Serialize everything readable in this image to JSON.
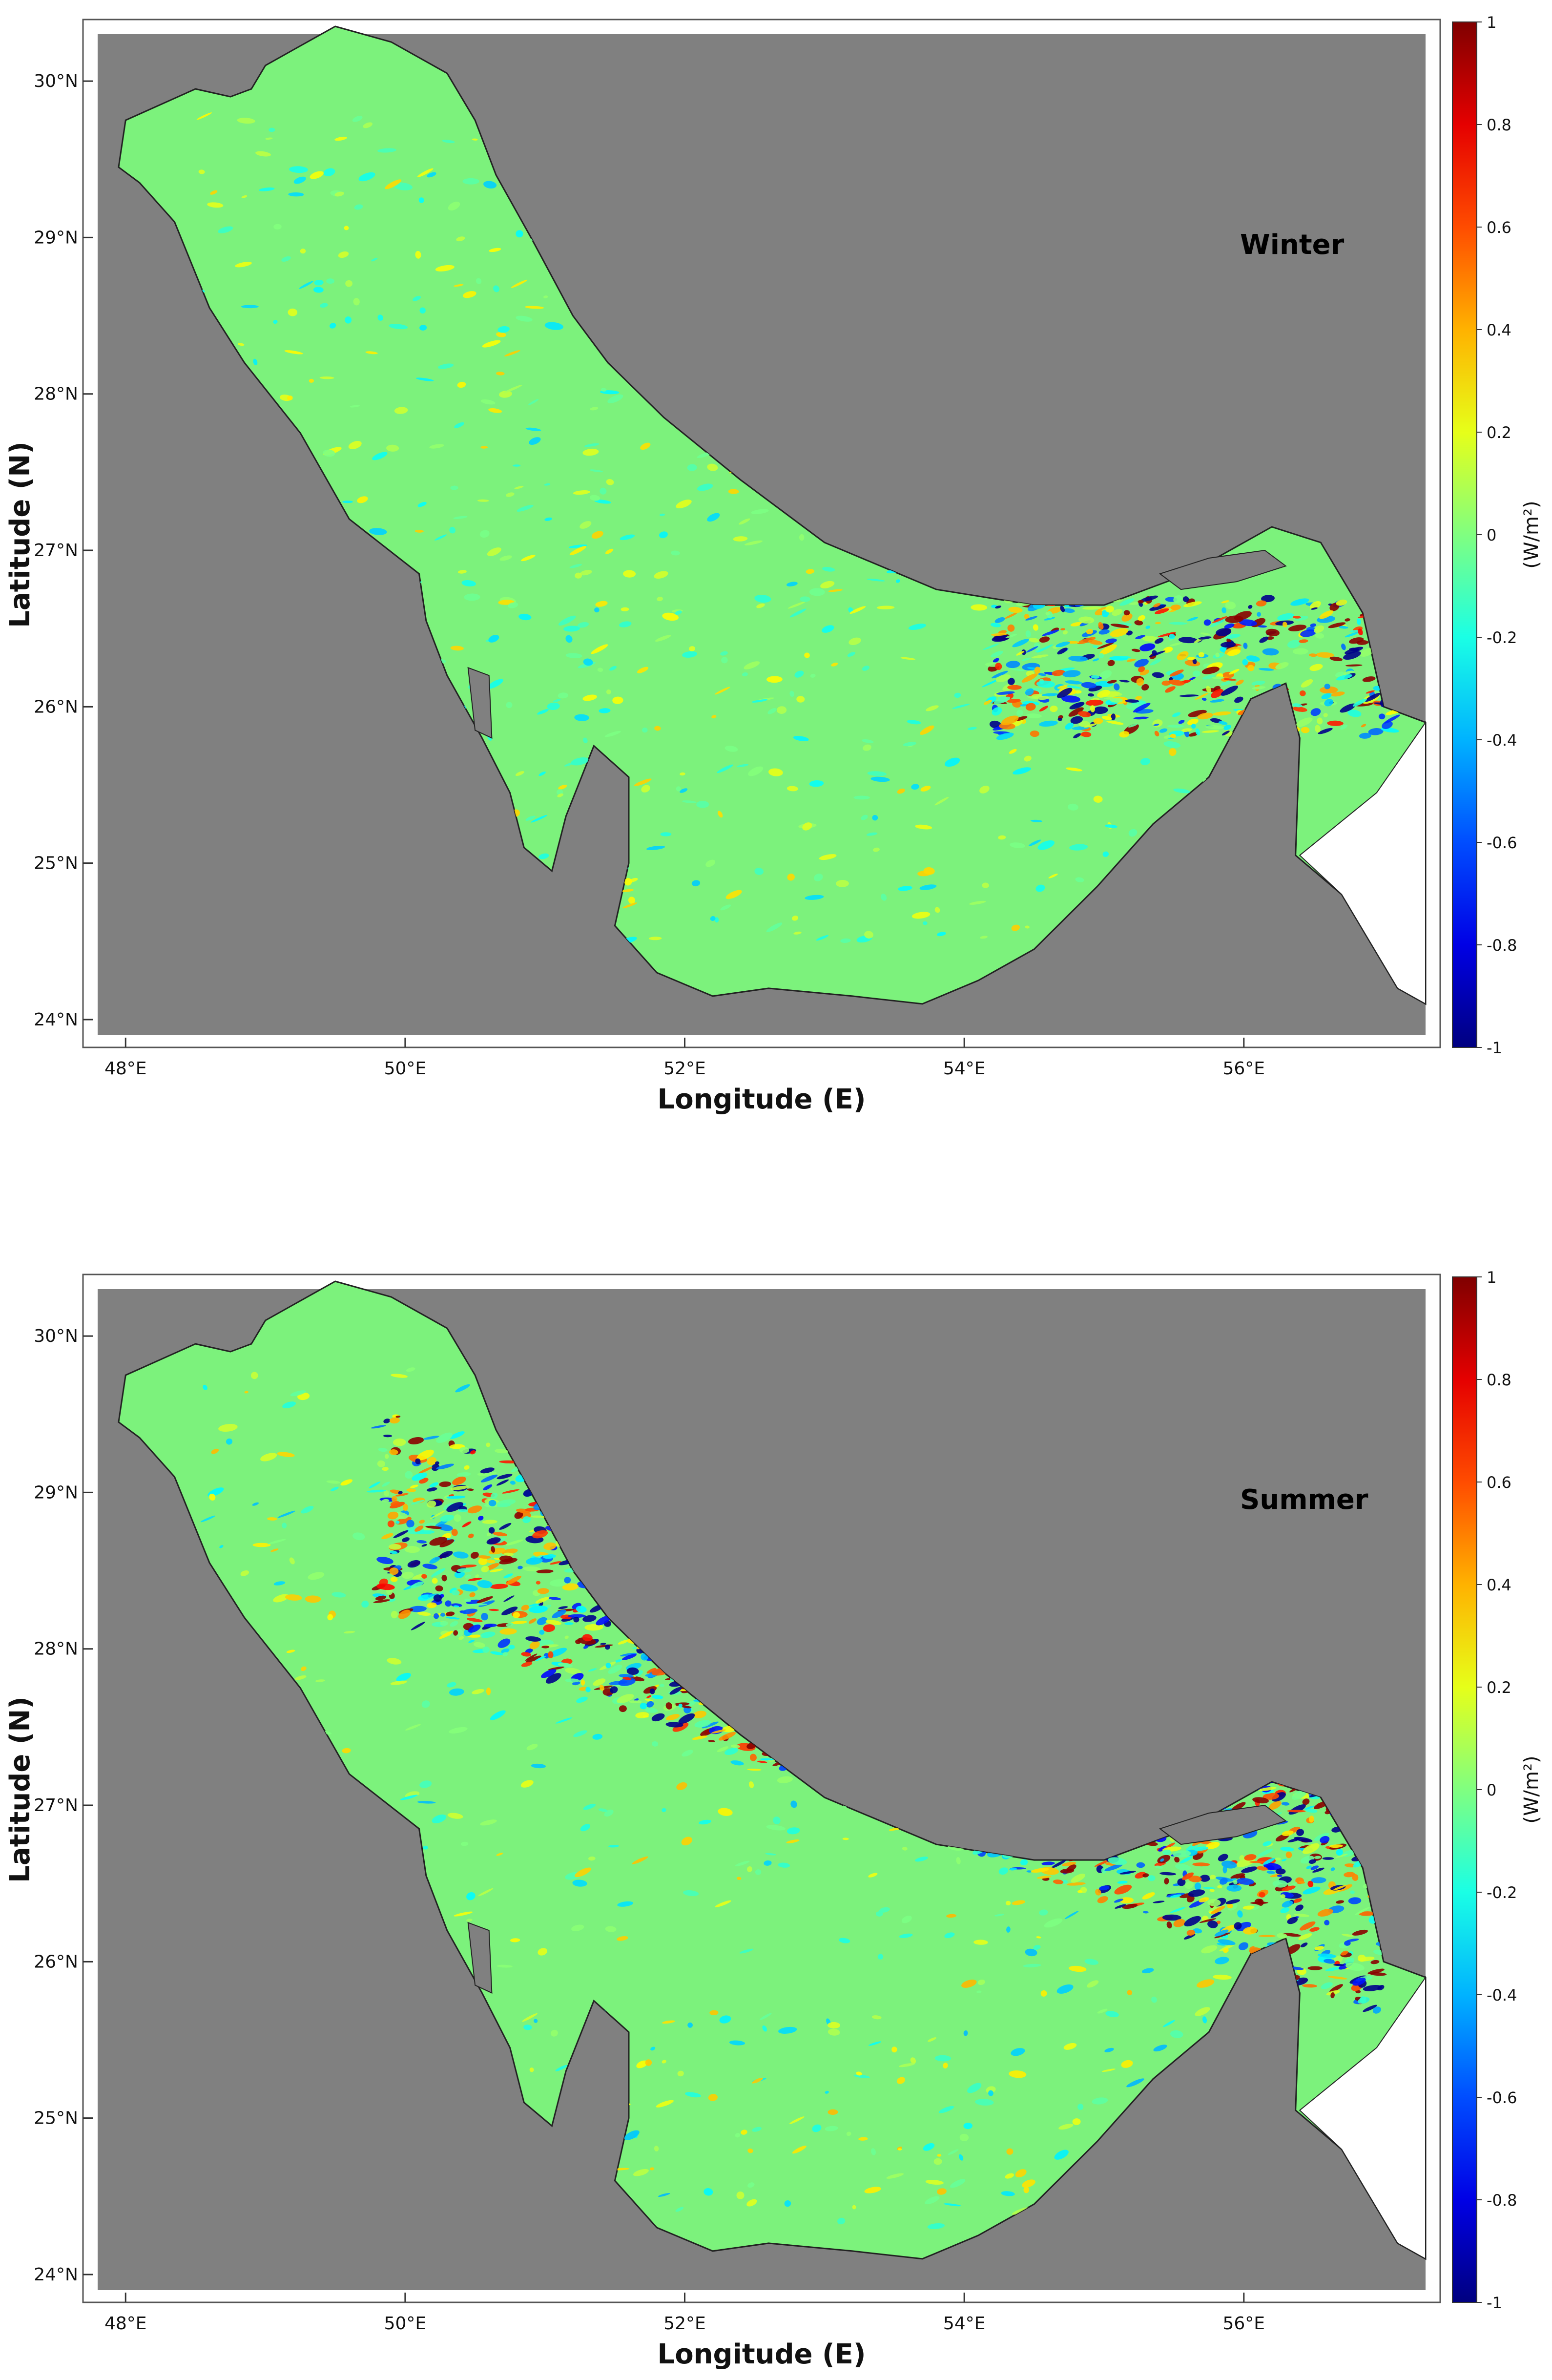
{
  "panels": [
    {
      "season": "Winter",
      "colorbar_unit": "(W/m²)",
      "y_axis_label": "Latitude (N)",
      "x_axis_label": "Longitude (E)",
      "lat_ticks": [
        "24°N",
        "25°N",
        "26°N",
        "27°N",
        "28°N",
        "29°N",
        "30°N"
      ],
      "lon_ticks": [
        "48°E",
        "50°E",
        "52°E",
        "54°E",
        "56°E"
      ],
      "colorbar_ticks": [
        "1",
        "0.8",
        "0.6",
        "0.4",
        "0.2",
        "0",
        "-0.2",
        "-0.4",
        "-0.6",
        "-0.8",
        "-1"
      ]
    },
    {
      "season": "Summer",
      "colorbar_unit": "(W/m²)",
      "y_axis_label": "Latitude (N)",
      "x_axis_label": "Longitude (E)",
      "lat_ticks": [
        "24°N",
        "25°N",
        "26°N",
        "27°N",
        "28°N",
        "29°N",
        "30°N"
      ],
      "lon_ticks": [
        "48°E",
        "50°E",
        "52°E",
        "54°E",
        "56°E"
      ],
      "colorbar_ticks": [
        "1",
        "0.8",
        "0.6",
        "0.4",
        "0.2",
        "0",
        "-0.2",
        "-0.4",
        "-0.6",
        "-0.8",
        "-1"
      ]
    }
  ],
  "colors": {
    "land": "#808080",
    "sea_base": "#7cf27c",
    "colormap": "jet",
    "high": "#8b0000",
    "low": "#00008b"
  }
}
